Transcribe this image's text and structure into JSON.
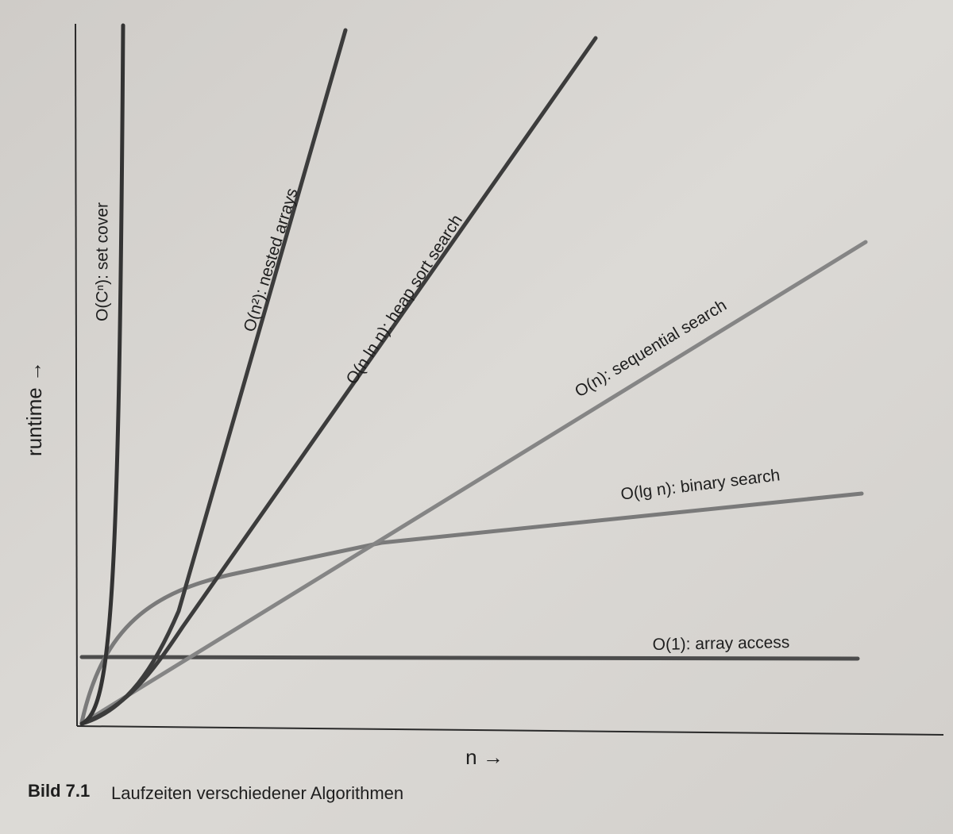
{
  "axes": {
    "y_label": "runtime →",
    "x_label": "n →"
  },
  "curves": [
    {
      "label": "O(Cⁿ): set cover"
    },
    {
      "label": "O(n²): nested arrays"
    },
    {
      "label": "O(n ln n): heap sort search"
    },
    {
      "label": "O(n): sequential search"
    },
    {
      "label": "O(lg n): binary search"
    },
    {
      "label": "O(1): array access"
    }
  ],
  "caption": {
    "number": "Bild 7.1",
    "text": "Laufzeiten verschiedener Algorithmen"
  }
}
